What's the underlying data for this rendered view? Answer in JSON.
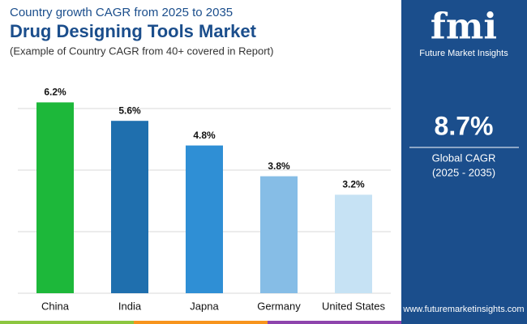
{
  "chart_data": {
    "type": "bar",
    "title": "Drug Designing Tools Market",
    "supertitle": "Country growth CAGR from 2025 to 2035",
    "subtitle": "(Example of Country CAGR from 40+ covered in Report)",
    "categories": [
      "China",
      "India",
      "Japna",
      "Germany",
      "United States"
    ],
    "values": [
      6.2,
      5.6,
      4.8,
      3.8,
      3.2
    ],
    "value_labels": [
      "6.2%",
      "5.6%",
      "4.8%",
      "3.8%",
      "3.2%"
    ],
    "colors": [
      "#1db83a",
      "#1f6fae",
      "#2f8fd5",
      "#86bde6",
      "#c6e2f4"
    ],
    "ylim": [
      0,
      7
    ],
    "yticks": [
      0,
      2,
      4,
      6
    ],
    "grid": true
  },
  "panel": {
    "logo": "fmi",
    "brand": "Future Market Insights",
    "cagr": "8.7%",
    "cagr_label": "Global CAGR",
    "period": "(2025 - 2035)",
    "url": "www.futuremarketinsights.com"
  }
}
